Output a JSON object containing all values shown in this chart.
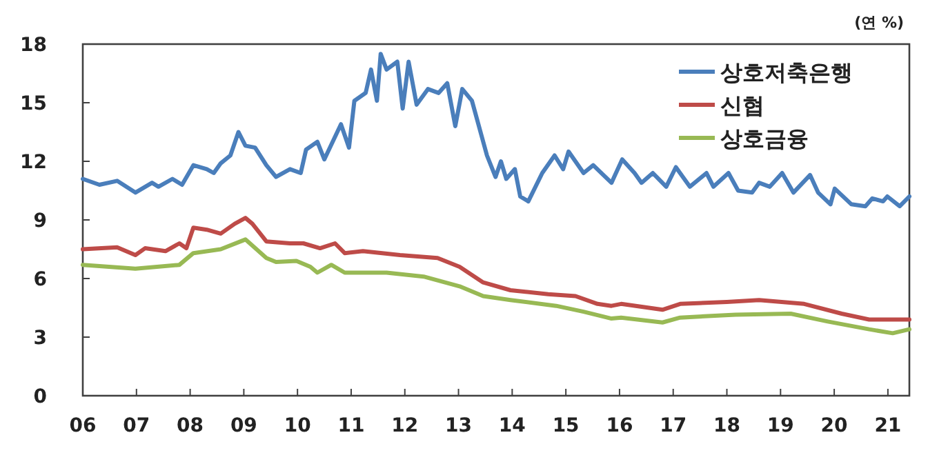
{
  "chart_data": {
    "type": "line",
    "ylabel": "(연 %)",
    "legend": "top right",
    "xlim": [
      2006,
      2021.4
    ],
    "ylim": [
      0,
      18
    ],
    "xticks": [
      {
        "value": 2006,
        "label": "06"
      },
      {
        "value": 2007,
        "label": "07"
      },
      {
        "value": 2008,
        "label": "08"
      },
      {
        "value": 2009,
        "label": "09"
      },
      {
        "value": 2010,
        "label": "10"
      },
      {
        "value": 2011,
        "label": "11"
      },
      {
        "value": 2012,
        "label": "12"
      },
      {
        "value": 2013,
        "label": "13"
      },
      {
        "value": 2014,
        "label": "14"
      },
      {
        "value": 2015,
        "label": "15"
      },
      {
        "value": 2016,
        "label": "16"
      },
      {
        "value": 2017,
        "label": "17"
      },
      {
        "value": 2018,
        "label": "18"
      },
      {
        "value": 2019,
        "label": "19"
      },
      {
        "value": 2020,
        "label": "20"
      },
      {
        "value": 2021,
        "label": "21"
      }
    ],
    "yticks": [
      0,
      3,
      6,
      9,
      12,
      15,
      18
    ],
    "series": [
      {
        "name": "상호저축은행",
        "color": "#4a7ebb",
        "x": [
          2006.0,
          2006.31,
          2006.64,
          2006.98,
          2007.29,
          2007.41,
          2007.67,
          2007.85,
          2008.06,
          2008.31,
          2008.44,
          2008.57,
          2008.75,
          2008.9,
          2009.03,
          2009.21,
          2009.42,
          2009.6,
          2009.86,
          2010.06,
          2010.16,
          2010.37,
          2010.5,
          2010.81,
          2010.96,
          2011.06,
          2011.27,
          2011.37,
          2011.48,
          2011.55,
          2011.66,
          2011.86,
          2011.96,
          2012.07,
          2012.22,
          2012.43,
          2012.63,
          2012.79,
          2012.94,
          2013.07,
          2013.25,
          2013.53,
          2013.69,
          2013.79,
          2013.89,
          2014.05,
          2014.15,
          2014.3,
          2014.56,
          2014.79,
          2014.95,
          2015.05,
          2015.33,
          2015.51,
          2015.85,
          2016.05,
          2016.28,
          2016.41,
          2016.62,
          2016.87,
          2017.05,
          2017.31,
          2017.62,
          2017.75,
          2018.03,
          2018.21,
          2018.47,
          2018.6,
          2018.8,
          2019.03,
          2019.24,
          2019.55,
          2019.7,
          2019.93,
          2020.01,
          2020.32,
          2020.58,
          2020.71,
          2020.91,
          2020.99,
          2021.22,
          2021.4
        ],
        "values": [
          11.1,
          10.8,
          11.0,
          10.4,
          10.9,
          10.7,
          11.1,
          10.8,
          11.8,
          11.6,
          11.4,
          11.9,
          12.3,
          13.5,
          12.8,
          12.7,
          11.8,
          11.2,
          11.6,
          11.4,
          12.6,
          13.0,
          12.1,
          13.9,
          12.7,
          15.1,
          15.5,
          16.7,
          15.1,
          17.5,
          16.7,
          17.1,
          14.7,
          17.1,
          14.9,
          15.7,
          15.5,
          16.0,
          13.8,
          15.7,
          15.1,
          12.3,
          11.2,
          12.0,
          11.1,
          11.6,
          10.2,
          9.95,
          11.4,
          12.3,
          11.6,
          12.5,
          11.4,
          11.8,
          10.9,
          12.1,
          11.4,
          10.9,
          11.4,
          10.7,
          11.7,
          10.7,
          11.4,
          10.7,
          11.4,
          10.5,
          10.4,
          10.9,
          10.7,
          11.4,
          10.4,
          11.3,
          10.4,
          9.8,
          10.6,
          9.8,
          9.7,
          10.1,
          9.95,
          10.2,
          9.7,
          10.2
        ]
      },
      {
        "name": "신협",
        "color": "#be4b48",
        "x": [
          2006.0,
          2006.64,
          2006.98,
          2007.16,
          2007.54,
          2007.8,
          2007.93,
          2008.06,
          2008.31,
          2008.57,
          2008.83,
          2009.03,
          2009.16,
          2009.42,
          2009.86,
          2010.11,
          2010.42,
          2010.7,
          2010.88,
          2011.22,
          2011.91,
          2012.61,
          2013.02,
          2013.46,
          2013.97,
          2014.67,
          2015.18,
          2015.59,
          2015.85,
          2016.03,
          2016.8,
          2017.13,
          2018.0,
          2018.6,
          2019.44,
          2020.14,
          2020.65,
          2021.4
        ],
        "values": [
          7.5,
          7.6,
          7.2,
          7.55,
          7.4,
          7.8,
          7.55,
          8.6,
          8.5,
          8.3,
          8.8,
          9.1,
          8.8,
          7.9,
          7.8,
          7.8,
          7.55,
          7.8,
          7.3,
          7.4,
          7.2,
          7.05,
          6.6,
          5.8,
          5.4,
          5.2,
          5.1,
          4.7,
          4.6,
          4.7,
          4.4,
          4.7,
          4.8,
          4.9,
          4.7,
          4.2,
          3.9,
          3.9
        ]
      },
      {
        "name": "상호금융",
        "color": "#98b954",
        "x": [
          2006.0,
          2006.98,
          2007.8,
          2008.06,
          2008.57,
          2009.03,
          2009.42,
          2009.6,
          2009.98,
          2010.24,
          2010.37,
          2010.63,
          2010.88,
          2011.66,
          2012.35,
          2013.02,
          2013.46,
          2013.97,
          2014.82,
          2015.33,
          2015.85,
          2016.03,
          2016.8,
          2017.13,
          2018.16,
          2019.19,
          2019.88,
          2020.65,
          2021.09,
          2021.4
        ],
        "values": [
          6.7,
          6.5,
          6.7,
          7.3,
          7.5,
          8.0,
          7.05,
          6.85,
          6.9,
          6.6,
          6.3,
          6.7,
          6.3,
          6.3,
          6.1,
          5.6,
          5.1,
          4.9,
          4.6,
          4.3,
          3.95,
          4.0,
          3.75,
          4.0,
          4.15,
          4.2,
          3.8,
          3.4,
          3.2,
          3.4
        ]
      }
    ]
  }
}
